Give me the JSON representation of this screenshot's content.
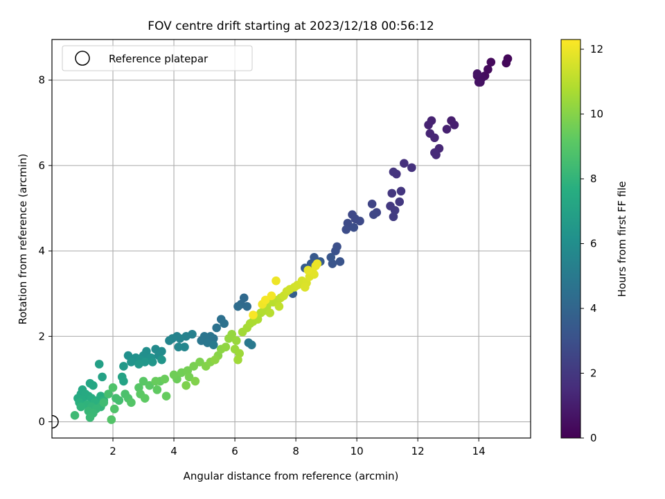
{
  "chart_data": {
    "type": "scatter",
    "title": "FOV centre drift starting at 2023/12/18 00:56:12",
    "xlabel": "Angular distance from reference (arcmin)",
    "ylabel": "Rotation from reference (arcmin)",
    "xlim": [
      0,
      15.7
    ],
    "ylim": [
      -0.38,
      8.95
    ],
    "xticks": [
      2,
      4,
      6,
      8,
      10,
      12,
      14
    ],
    "yticks": [
      0,
      2,
      4,
      6,
      8
    ],
    "grid": true,
    "legend": {
      "position": "top-left",
      "entries": [
        "Reference platepar"
      ]
    },
    "reference_point": {
      "x": 0,
      "y": 0
    },
    "colorbar": {
      "label": "Hours from first FF file",
      "range": [
        0,
        12.3
      ],
      "ticks": [
        0,
        2,
        4,
        6,
        8,
        10,
        12
      ],
      "colormap": "viridis"
    },
    "series": [
      {
        "name": "",
        "points": [
          [
            14.95,
            8.5,
            0.2
          ],
          [
            14.9,
            8.4,
            0.25
          ],
          [
            14.4,
            8.42,
            0.3
          ],
          [
            14.3,
            8.25,
            0.35
          ],
          [
            14.2,
            8.1,
            0.4
          ],
          [
            13.95,
            8.1,
            0.45
          ],
          [
            14.1,
            8.05,
            0.5
          ],
          [
            14.05,
            7.95,
            0.55
          ],
          [
            14.0,
            7.95,
            0.6
          ],
          [
            13.95,
            8.15,
            0.65
          ],
          [
            13.1,
            7.05,
            1.0
          ],
          [
            13.2,
            6.95,
            1.05
          ],
          [
            12.95,
            6.85,
            1.1
          ],
          [
            12.45,
            7.05,
            1.15
          ],
          [
            12.35,
            6.95,
            1.2
          ],
          [
            12.4,
            6.75,
            1.25
          ],
          [
            12.55,
            6.65,
            1.3
          ],
          [
            12.7,
            6.4,
            1.35
          ],
          [
            12.6,
            6.25,
            1.4
          ],
          [
            12.55,
            6.3,
            1.45
          ],
          [
            11.55,
            6.05,
            1.7
          ],
          [
            11.8,
            5.95,
            1.75
          ],
          [
            11.3,
            5.8,
            1.8
          ],
          [
            11.2,
            5.85,
            1.85
          ],
          [
            11.45,
            5.4,
            1.9
          ],
          [
            11.15,
            5.35,
            1.95
          ],
          [
            11.4,
            5.15,
            2.0
          ],
          [
            11.1,
            5.05,
            2.05
          ],
          [
            11.25,
            4.95,
            2.1
          ],
          [
            11.2,
            4.8,
            2.15
          ],
          [
            10.5,
            5.1,
            2.5
          ],
          [
            10.65,
            4.9,
            2.55
          ],
          [
            10.55,
            4.85,
            2.6
          ],
          [
            9.85,
            4.85,
            2.65
          ],
          [
            9.95,
            4.75,
            2.7
          ],
          [
            10.1,
            4.7,
            2.75
          ],
          [
            9.7,
            4.65,
            2.8
          ],
          [
            9.65,
            4.5,
            2.85
          ],
          [
            9.9,
            4.55,
            2.9
          ],
          [
            9.35,
            4.1,
            3.0
          ],
          [
            9.3,
            4.0,
            3.05
          ],
          [
            9.45,
            3.75,
            3.15
          ],
          [
            9.2,
            3.7,
            3.2
          ],
          [
            9.15,
            3.85,
            3.25
          ],
          [
            8.6,
            3.85,
            3.4
          ],
          [
            8.5,
            3.7,
            3.45
          ],
          [
            8.8,
            3.75,
            3.5
          ],
          [
            8.3,
            3.6,
            3.55
          ],
          [
            7.9,
            3.0,
            3.65
          ],
          [
            7.85,
            3.05,
            3.7
          ],
          [
            6.3,
            2.9,
            4.2
          ],
          [
            6.2,
            2.75,
            4.25
          ],
          [
            6.4,
            2.7,
            4.3
          ],
          [
            6.1,
            2.7,
            4.35
          ],
          [
            5.55,
            2.4,
            4.5
          ],
          [
            5.65,
            2.3,
            4.55
          ],
          [
            5.4,
            2.2,
            4.6
          ],
          [
            5.3,
            1.95,
            4.65
          ],
          [
            5.2,
            2.0,
            4.7
          ],
          [
            5.0,
            2.0,
            4.75
          ],
          [
            4.9,
            1.9,
            4.8
          ],
          [
            5.1,
            1.85,
            4.85
          ],
          [
            6.45,
            1.85,
            4.9
          ],
          [
            6.55,
            1.8,
            4.95
          ],
          [
            5.3,
            1.8,
            5.0
          ],
          [
            4.6,
            2.05,
            5.3
          ],
          [
            4.4,
            2.0,
            5.35
          ],
          [
            4.1,
            2.0,
            5.4
          ],
          [
            4.2,
            1.95,
            5.45
          ],
          [
            3.95,
            1.95,
            5.5
          ],
          [
            3.85,
            1.9,
            5.55
          ],
          [
            4.35,
            1.75,
            5.6
          ],
          [
            4.15,
            1.75,
            5.65
          ],
          [
            3.4,
            1.7,
            5.8
          ],
          [
            3.6,
            1.65,
            5.85
          ],
          [
            3.5,
            1.55,
            5.9
          ],
          [
            3.1,
            1.65,
            6.0
          ],
          [
            3.0,
            1.55,
            6.05
          ],
          [
            2.5,
            1.55,
            6.1
          ],
          [
            2.75,
            1.5,
            6.15
          ],
          [
            3.25,
            1.5,
            6.2
          ],
          [
            2.9,
            1.45,
            6.25
          ],
          [
            2.6,
            1.4,
            6.3
          ],
          [
            3.6,
            1.45,
            6.35
          ],
          [
            3.3,
            1.4,
            6.4
          ],
          [
            3.05,
            1.4,
            6.45
          ],
          [
            2.85,
            1.35,
            6.5
          ],
          [
            2.35,
            1.3,
            6.55
          ],
          [
            1.55,
            1.35,
            6.9
          ],
          [
            1.65,
            1.05,
            7.0
          ],
          [
            2.3,
            1.05,
            7.05
          ],
          [
            2.35,
            0.95,
            7.1
          ],
          [
            1.25,
            0.9,
            7.2
          ],
          [
            1.35,
            0.85,
            7.25
          ],
          [
            1.0,
            0.75,
            7.3
          ],
          [
            0.95,
            0.65,
            7.35
          ],
          [
            1.1,
            0.65,
            7.4
          ],
          [
            0.85,
            0.55,
            7.45
          ],
          [
            1.2,
            0.6,
            7.5
          ],
          [
            1.0,
            0.5,
            7.55
          ],
          [
            1.3,
            0.55,
            7.6
          ],
          [
            1.6,
            0.6,
            7.65
          ],
          [
            1.5,
            0.5,
            7.7
          ],
          [
            0.9,
            0.45,
            7.75
          ],
          [
            1.4,
            0.45,
            7.8
          ],
          [
            1.7,
            0.5,
            7.85
          ],
          [
            1.15,
            0.4,
            7.9
          ],
          [
            0.95,
            0.35,
            7.95
          ],
          [
            1.3,
            0.35,
            8.0
          ],
          [
            1.6,
            0.35,
            8.05
          ],
          [
            1.45,
            0.3,
            8.1
          ],
          [
            1.2,
            0.25,
            8.15
          ],
          [
            1.35,
            0.2,
            8.2
          ],
          [
            1.25,
            0.1,
            8.25
          ],
          [
            0.75,
            0.15,
            8.3
          ],
          [
            1.7,
            0.45,
            8.4
          ],
          [
            2.1,
            0.55,
            8.5
          ],
          [
            2.2,
            0.5,
            8.55
          ],
          [
            1.85,
            0.65,
            8.6
          ],
          [
            2.4,
            0.65,
            8.7
          ],
          [
            2.5,
            0.55,
            8.75
          ],
          [
            2.0,
            0.8,
            8.8
          ],
          [
            2.05,
            0.3,
            8.85
          ],
          [
            1.95,
            0.05,
            8.9
          ],
          [
            2.6,
            0.45,
            8.95
          ],
          [
            2.85,
            0.8,
            9.0
          ],
          [
            3.0,
            0.95,
            9.05
          ],
          [
            3.2,
            0.85,
            9.1
          ],
          [
            2.9,
            0.65,
            9.15
          ],
          [
            3.05,
            0.55,
            9.2
          ],
          [
            3.45,
            0.75,
            9.25
          ],
          [
            3.55,
            0.95,
            9.3
          ],
          [
            3.75,
            0.6,
            9.35
          ],
          [
            3.4,
            0.95,
            9.4
          ],
          [
            3.7,
            1.0,
            9.45
          ],
          [
            4.1,
            1.0,
            9.5
          ],
          [
            4.0,
            1.1,
            9.55
          ],
          [
            4.25,
            1.15,
            9.6
          ],
          [
            4.45,
            1.2,
            9.65
          ],
          [
            4.5,
            1.05,
            9.7
          ],
          [
            4.65,
            1.3,
            9.75
          ],
          [
            4.85,
            1.4,
            9.8
          ],
          [
            4.4,
            0.85,
            9.85
          ],
          [
            4.7,
            0.95,
            9.9
          ],
          [
            5.05,
            1.3,
            9.95
          ],
          [
            5.2,
            1.4,
            10.0
          ],
          [
            5.45,
            1.55,
            10.05
          ],
          [
            5.55,
            1.7,
            10.1
          ],
          [
            5.35,
            1.45,
            10.15
          ],
          [
            5.7,
            1.75,
            10.2
          ],
          [
            5.8,
            1.95,
            10.25
          ],
          [
            5.9,
            2.05,
            10.3
          ],
          [
            6.05,
            1.9,
            10.35
          ],
          [
            6.0,
            1.7,
            10.4
          ],
          [
            6.15,
            1.6,
            10.45
          ],
          [
            6.1,
            1.45,
            10.5
          ],
          [
            6.25,
            2.1,
            10.55
          ],
          [
            6.4,
            2.2,
            10.6
          ],
          [
            6.5,
            2.3,
            10.65
          ],
          [
            6.6,
            2.35,
            10.7
          ],
          [
            6.75,
            2.4,
            10.75
          ],
          [
            6.85,
            2.55,
            10.8
          ],
          [
            6.95,
            2.6,
            10.85
          ],
          [
            7.05,
            2.7,
            10.9
          ],
          [
            7.15,
            2.55,
            10.95
          ],
          [
            7.25,
            2.8,
            11.0
          ],
          [
            7.4,
            2.85,
            11.05
          ],
          [
            7.5,
            2.9,
            11.1
          ],
          [
            7.45,
            2.7,
            11.15
          ],
          [
            7.6,
            2.95,
            11.3
          ],
          [
            7.7,
            3.05,
            11.35
          ],
          [
            7.8,
            3.1,
            11.4
          ],
          [
            7.95,
            3.15,
            11.45
          ],
          [
            8.05,
            3.2,
            11.5
          ],
          [
            8.2,
            3.3,
            11.55
          ],
          [
            8.35,
            3.25,
            11.6
          ],
          [
            8.3,
            3.15,
            11.65
          ],
          [
            8.45,
            3.4,
            11.7
          ],
          [
            8.6,
            3.45,
            11.75
          ],
          [
            8.55,
            3.5,
            11.8
          ],
          [
            8.4,
            3.55,
            11.85
          ],
          [
            8.65,
            3.65,
            11.9
          ],
          [
            8.7,
            3.7,
            11.95
          ],
          [
            7.35,
            3.3,
            12.0
          ],
          [
            6.9,
            2.75,
            12.05
          ],
          [
            7.2,
            2.95,
            12.1
          ],
          [
            7.0,
            2.85,
            12.15
          ],
          [
            6.6,
            2.5,
            12.2
          ]
        ]
      }
    ]
  }
}
